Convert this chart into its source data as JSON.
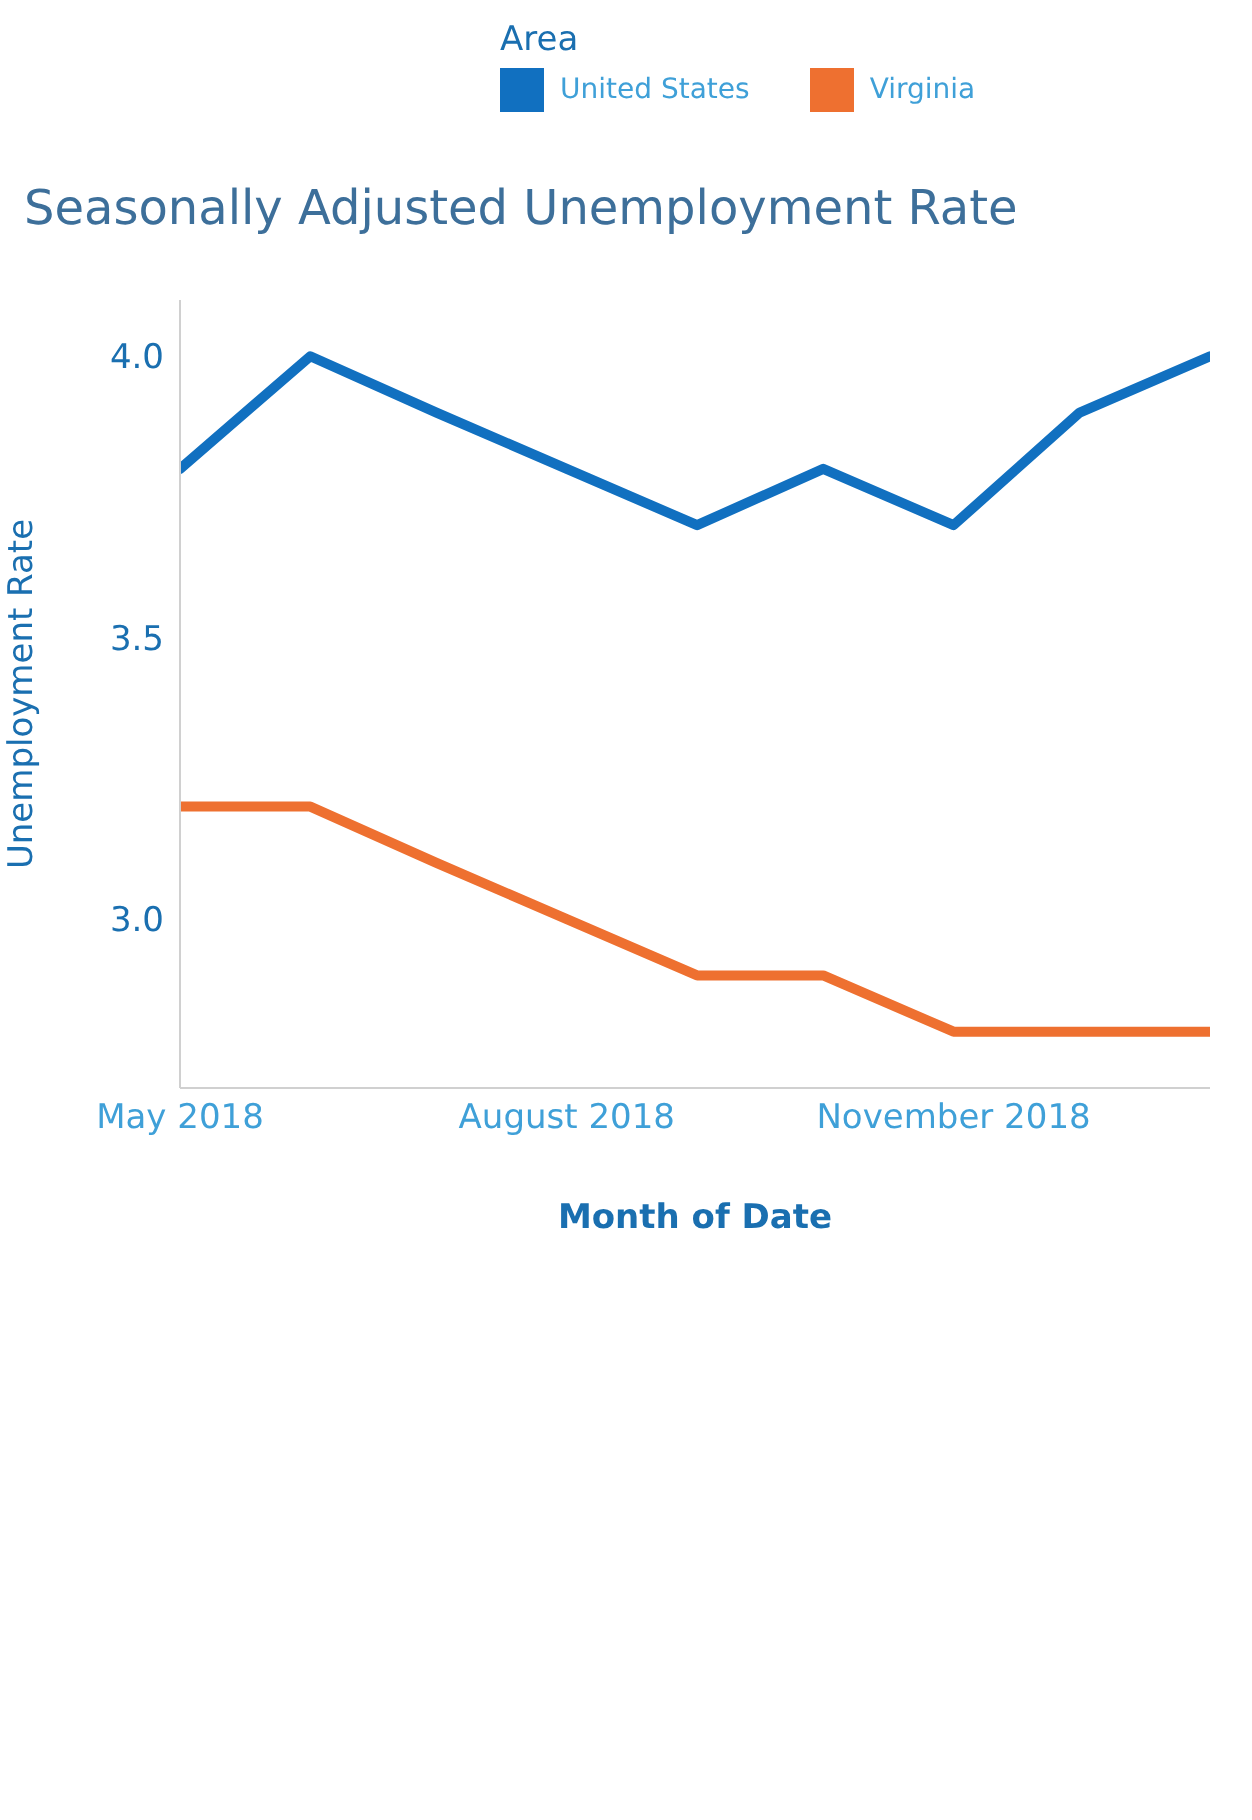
{
  "chart_data": {
    "type": "line",
    "title": "Seasonally Adjusted Unemployment Rate",
    "xlabel": "Month of Date",
    "ylabel": "Unemployment Rate",
    "legend_title": "Area",
    "legend": "top right",
    "grid": false,
    "x": [
      "2018-05",
      "2018-06",
      "2018-07",
      "2018-08",
      "2018-09",
      "2018-10",
      "2018-11",
      "2018-12",
      "2019-01"
    ],
    "xlim": [
      "2018-05",
      "2019-01"
    ],
    "xticks": [
      {
        "value": "2018-05",
        "label": "May 2018"
      },
      {
        "value": "2018-08",
        "label": "August 2018"
      },
      {
        "value": "2018-11",
        "label": "November 2018"
      }
    ],
    "ylim": [
      2.7,
      4.1
    ],
    "yticks": [
      {
        "value": 3,
        "label": "3.0"
      },
      {
        "value": 3.5,
        "label": "3.5"
      },
      {
        "value": 4,
        "label": "4.0"
      }
    ],
    "series": [
      {
        "name": "United States",
        "color": "#1170c0",
        "values": [
          3.8,
          4.0,
          3.9,
          3.8,
          3.7,
          3.8,
          3.7,
          3.9,
          4.0
        ]
      },
      {
        "name": "Virginia",
        "color": "#ee7030",
        "values": [
          3.2,
          3.2,
          3.1,
          3.0,
          2.9,
          2.9,
          2.8,
          2.8,
          2.8
        ]
      }
    ]
  }
}
